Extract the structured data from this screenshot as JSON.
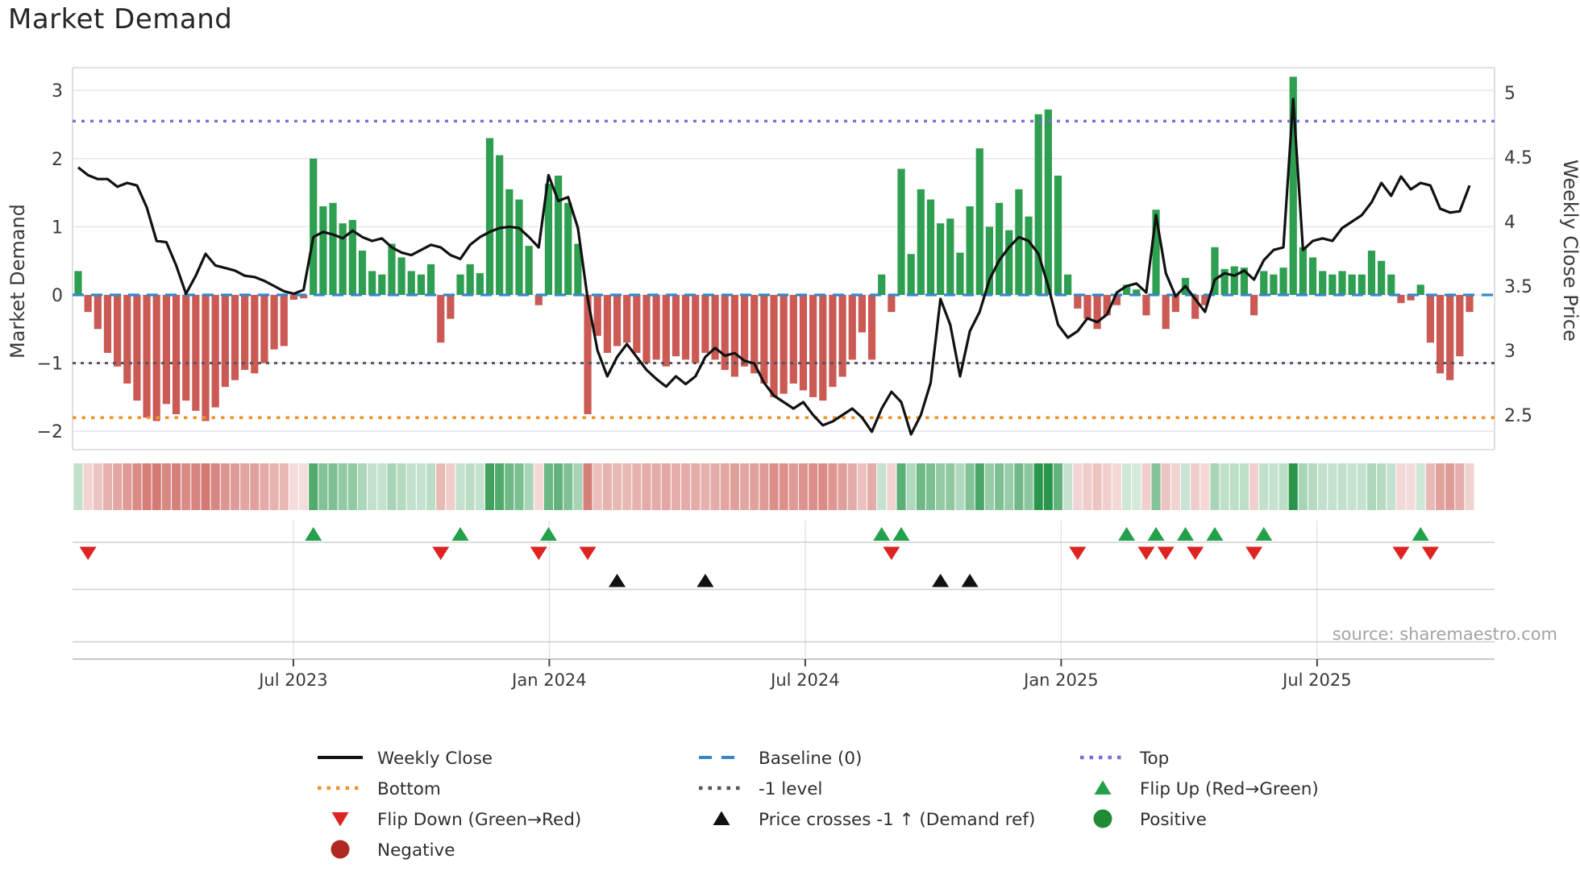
{
  "title": "Market Demand",
  "y_left_label": "Market Demand",
  "y_right_label": "Weekly Close Price",
  "source": "source: sharemaestro.com",
  "colors": {
    "green_bar": "#2e9e50",
    "red_bar": "#cb5a54",
    "price_line": "#111111",
    "baseline": "#3787c8",
    "top": "#7e6bd6",
    "bottom": "#f0932a",
    "minus1": "#55555e",
    "flip_up": "#22a04a",
    "flip_down": "#de2422",
    "price_cross": "#111111",
    "positive_dot": "#1f8b35",
    "negative_dot": "#b02824",
    "heat_green": "#1d9041",
    "heat_red": "#c4473f",
    "grid": "#e8e8f1"
  },
  "chart_data": {
    "type": "bar+line",
    "title": "Market Demand",
    "xlabel": "",
    "ylabel_left": "Market Demand",
    "ylabel_right": "Weekly Close Price",
    "x_tick_labels": [
      "Jul 2023",
      "Jan 2024",
      "Jul 2024",
      "Jan 2025",
      "Jul 2025"
    ],
    "x_tick_weeks": [
      21.96,
      48.08,
      74.2,
      100.32,
      126.44
    ],
    "y_left_tick_labels": [
      "3",
      "2",
      "1",
      "0",
      "−1",
      "−2"
    ],
    "y_left_tick_values": [
      3,
      2,
      1,
      0,
      -1,
      -2
    ],
    "y_right_tick_labels": [
      "5",
      "4.5",
      "4",
      "3.5",
      "3",
      "2.5"
    ],
    "y_right_tick_values": [
      5,
      4.5,
      4,
      3.5,
      3,
      2.5
    ],
    "ylim_left": [
      -2.3,
      3.33
    ],
    "ylim_right": [
      2.23,
      5.19
    ],
    "grid": "horizontal-only",
    "legend_position": "bottom",
    "ref_lines": {
      "top": 2.55,
      "baseline": 0,
      "minus1": -1,
      "bottom": -1.8
    },
    "weeks": 143,
    "series": [
      {
        "name": "Market Demand",
        "type": "bar",
        "values": [
          0.35,
          -0.25,
          -0.5,
          -0.85,
          -1.05,
          -1.3,
          -1.55,
          -1.8,
          -1.85,
          -1.6,
          -1.75,
          -1.55,
          -1.7,
          -1.85,
          -1.65,
          -1.35,
          -1.25,
          -1.1,
          -1.15,
          -1.0,
          -0.8,
          -0.75,
          -0.07,
          -0.05,
          2.0,
          1.3,
          1.35,
          1.05,
          1.1,
          0.65,
          0.35,
          0.3,
          0.75,
          0.55,
          0.35,
          0.3,
          0.45,
          -0.7,
          -0.35,
          0.3,
          0.45,
          0.32,
          2.3,
          2.05,
          1.55,
          1.4,
          0.72,
          -0.15,
          1.63,
          1.75,
          1.35,
          0.75,
          -1.75,
          -0.6,
          -0.85,
          -0.75,
          -0.7,
          -0.85,
          -1.0,
          -0.95,
          -1.05,
          -0.9,
          -0.95,
          -1.0,
          -0.85,
          -0.95,
          -1.1,
          -1.2,
          -1.05,
          -1.15,
          -1.3,
          -1.5,
          -1.45,
          -1.3,
          -1.4,
          -1.5,
          -1.55,
          -1.35,
          -1.2,
          -0.95,
          -0.55,
          -0.95,
          0.3,
          -0.25,
          1.85,
          0.6,
          1.55,
          1.4,
          1.05,
          1.12,
          0.62,
          1.3,
          2.15,
          1.0,
          1.35,
          0.95,
          1.55,
          1.15,
          2.65,
          2.72,
          1.75,
          0.3,
          -0.2,
          -0.35,
          -0.5,
          -0.3,
          -0.15,
          0.15,
          0.08,
          -0.3,
          1.25,
          -0.5,
          -0.25,
          0.25,
          -0.35,
          -0.15,
          0.7,
          0.38,
          0.42,
          0.4,
          -0.3,
          0.35,
          0.3,
          0.4,
          3.2,
          0.7,
          0.55,
          0.35,
          0.3,
          0.35,
          0.3,
          0.3,
          0.65,
          0.5,
          0.3,
          -0.12,
          -0.08,
          0.15,
          -0.7,
          -1.15,
          -1.25,
          -0.9,
          -0.25
        ]
      },
      {
        "name": "Weekly Close",
        "type": "line",
        "values": [
          4.42,
          4.36,
          4.33,
          4.33,
          4.27,
          4.3,
          4.28,
          4.11,
          3.85,
          3.84,
          3.66,
          3.44,
          3.58,
          3.75,
          3.66,
          3.64,
          3.62,
          3.58,
          3.57,
          3.54,
          3.5,
          3.46,
          3.44,
          3.47,
          3.88,
          3.92,
          3.9,
          3.87,
          3.93,
          3.88,
          3.85,
          3.87,
          3.8,
          3.76,
          3.74,
          3.78,
          3.82,
          3.8,
          3.74,
          3.71,
          3.82,
          3.88,
          3.92,
          3.95,
          3.96,
          3.95,
          3.88,
          3.8,
          4.36,
          4.16,
          4.19,
          3.95,
          3.4,
          3.0,
          2.8,
          2.95,
          3.05,
          2.95,
          2.85,
          2.78,
          2.72,
          2.8,
          2.74,
          2.8,
          2.95,
          3.02,
          2.96,
          2.98,
          2.92,
          2.9,
          2.75,
          2.65,
          2.6,
          2.55,
          2.6,
          2.5,
          2.42,
          2.45,
          2.5,
          2.55,
          2.48,
          2.37,
          2.55,
          2.68,
          2.6,
          2.35,
          2.5,
          2.75,
          3.4,
          3.2,
          2.8,
          3.15,
          3.3,
          3.55,
          3.7,
          3.8,
          3.88,
          3.85,
          3.75,
          3.5,
          3.2,
          3.1,
          3.15,
          3.25,
          3.22,
          3.28,
          3.45,
          3.5,
          3.52,
          3.45,
          4.05,
          3.6,
          3.42,
          3.5,
          3.4,
          3.3,
          3.55,
          3.6,
          3.58,
          3.62,
          3.55,
          3.7,
          3.78,
          3.8,
          4.95,
          3.78,
          3.85,
          3.87,
          3.85,
          3.95,
          4.0,
          4.05,
          4.15,
          4.3,
          4.2,
          4.35,
          4.25,
          4.3,
          4.28,
          4.1,
          4.07,
          4.08,
          4.28
        ]
      }
    ],
    "markers": {
      "flip_up_weeks": [
        24,
        39,
        48,
        82,
        84,
        107,
        110,
        113,
        116,
        121,
        137
      ],
      "flip_down_weeks": [
        1,
        37,
        47,
        52,
        83,
        102,
        109,
        111,
        114,
        120,
        135,
        138
      ],
      "price_cross_up_weeks": [
        55,
        64,
        88,
        91
      ]
    },
    "heatmap": "same values as demand bars, green positive / red negative, intensity by magnitude"
  },
  "legend": {
    "columns": [
      {
        "items": [
          {
            "label": "Weekly Close",
            "marker": "solid-line",
            "color": "#111111"
          },
          {
            "label": "Bottom",
            "marker": "dotted-line",
            "color": "#f0932a"
          },
          {
            "label": "Flip Down (Green→Red)",
            "marker": "triangle-down",
            "color": "#de2422"
          },
          {
            "label": "Negative",
            "marker": "circle",
            "color": "#b02824"
          }
        ]
      },
      {
        "items": [
          {
            "label": "Baseline (0)",
            "marker": "dashed-line",
            "color": "#3787c8"
          },
          {
            "label": "-1 level",
            "marker": "dotted-line",
            "color": "#55555e"
          },
          {
            "label": "Price crosses -1 ↑ (Demand ref)",
            "marker": "triangle-up",
            "color": "#111111"
          }
        ]
      },
      {
        "items": [
          {
            "label": "Top",
            "marker": "dotted-line",
            "color": "#7e6bd6"
          },
          {
            "label": "Flip Up (Red→Green)",
            "marker": "triangle-up",
            "color": "#22a04a"
          },
          {
            "label": "Positive",
            "marker": "circle",
            "color": "#1f8b35"
          }
        ]
      }
    ]
  }
}
